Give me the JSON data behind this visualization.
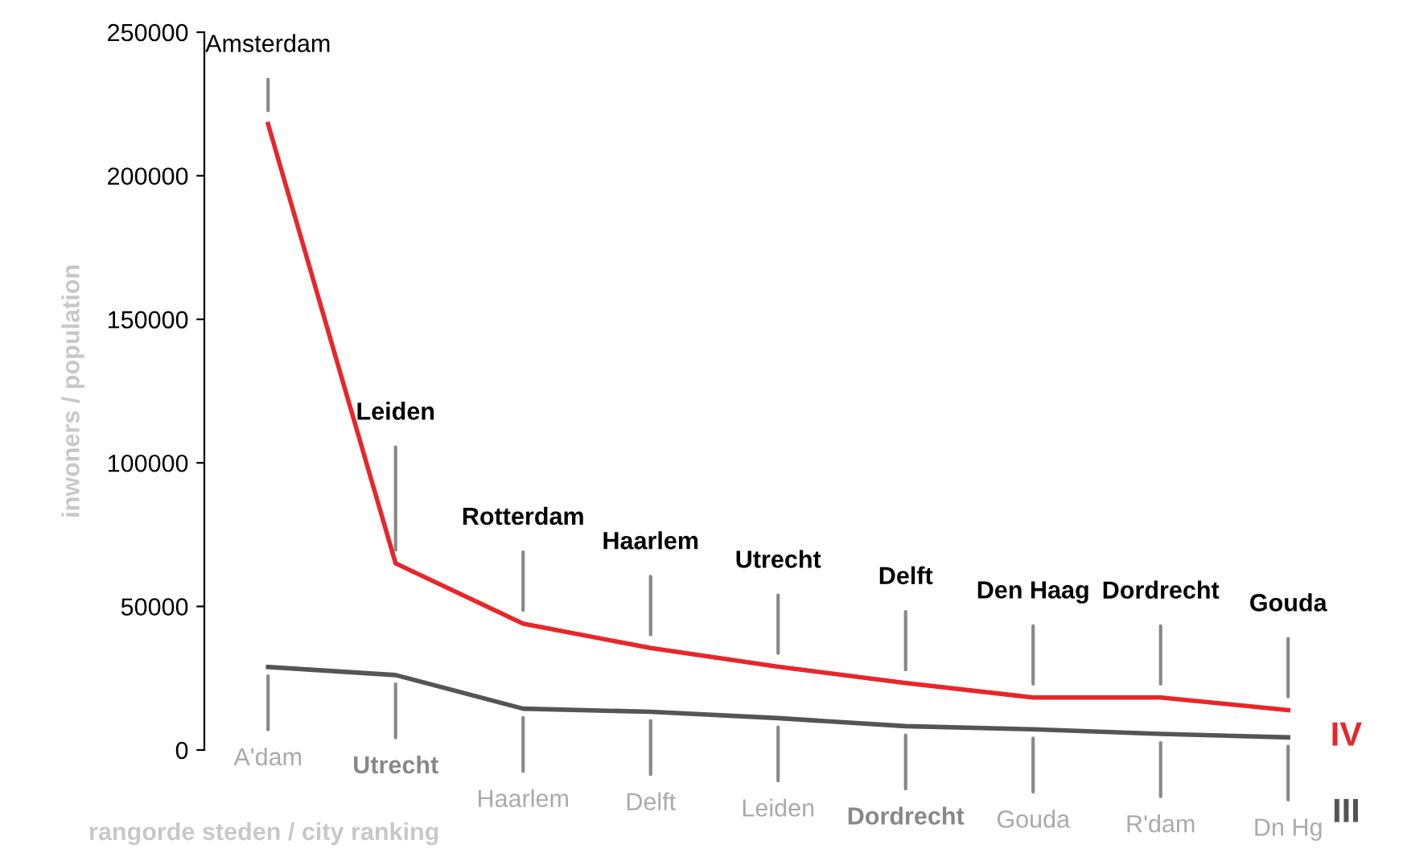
{
  "chart_data": {
    "type": "line",
    "xlabel": "rangorde steden / city ranking",
    "ylabel": "inwoners / population",
    "categories": [
      null,
      null,
      null,
      null,
      null,
      null,
      null,
      null,
      null
    ],
    "series": [
      {
        "name": "IV",
        "color": "#e8262a",
        "values": [
          218000,
          65000,
          44000,
          35500,
          29000,
          23300,
          18300,
          18300,
          13900
        ],
        "value_labels": [
          "Amsterdam",
          "Leiden",
          "Rotterdam",
          "Haarlem",
          "Utrecht",
          "Delft",
          "Den Haag",
          "Dordrecht",
          "Gouda"
        ]
      },
      {
        "name": "III",
        "color": "#555555",
        "values": [
          28900,
          26100,
          14400,
          13300,
          11100,
          8300,
          7200,
          5600,
          4400
        ],
        "value_labels": [
          "A'dam",
          "Utrecht",
          "Haarlem",
          "Delft",
          "Leiden",
          "Dordrecht",
          "Gouda",
          "R'dam",
          "Dn Hg"
        ]
      }
    ],
    "ylim": [
      0,
      250000
    ],
    "yticks": [
      0,
      50000,
      100000,
      150000,
      200000,
      250000
    ],
    "grid": false,
    "legend": false,
    "marker": "none",
    "line_style": "solid"
  }
}
